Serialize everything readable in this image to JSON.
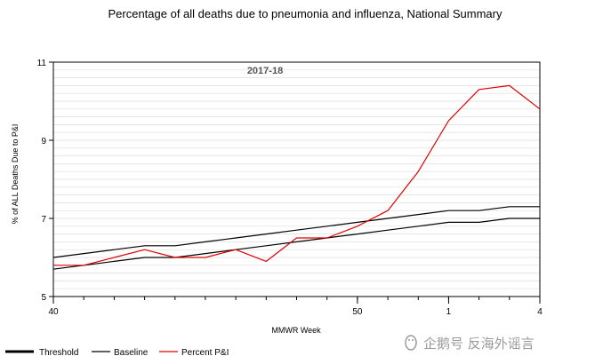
{
  "chart_data": {
    "type": "line",
    "title": "Percentage of all deaths due to pneumonia and influenza, National Summary",
    "season_label": "2017-18",
    "xlabel": "MMWR Week",
    "ylabel": "% of ALL Deaths Due to P&I",
    "ylim": [
      5,
      11
    ],
    "yticks": [
      5,
      7,
      9,
      11
    ],
    "xticks": [
      {
        "index": 0,
        "label": "40"
      },
      {
        "index": 10,
        "label": "50"
      },
      {
        "index": 13,
        "label": "1"
      },
      {
        "index": 16,
        "label": "4"
      }
    ],
    "weeks": [
      "40",
      "41",
      "42",
      "43",
      "44",
      "45",
      "46",
      "47",
      "48",
      "49",
      "50",
      "51",
      "52",
      "1",
      "2",
      "3",
      "4"
    ],
    "series": [
      {
        "name": "Threshold",
        "color": "#000000",
        "values": [
          6.0,
          6.1,
          6.2,
          6.3,
          6.3,
          6.4,
          6.5,
          6.6,
          6.7,
          6.8,
          6.9,
          7.0,
          7.1,
          7.2,
          7.2,
          7.3,
          7.3
        ]
      },
      {
        "name": "Baseline",
        "color": "#000000",
        "values": [
          5.7,
          5.8,
          5.9,
          6.0,
          6.0,
          6.1,
          6.2,
          6.3,
          6.4,
          6.5,
          6.6,
          6.7,
          6.8,
          6.9,
          6.9,
          7.0,
          7.0
        ]
      },
      {
        "name": "Percent P&I",
        "color": "#e00000",
        "values": [
          5.8,
          5.8,
          6.0,
          6.2,
          6.0,
          6.0,
          6.2,
          5.9,
          6.5,
          6.5,
          6.8,
          7.2,
          8.2,
          9.5,
          10.3,
          10.4,
          9.8
        ]
      }
    ],
    "grid": true,
    "legend_position": "bottom-left"
  },
  "watermark": "企鹅号 反海外谣言",
  "colors": {
    "threshold": "#000000",
    "baseline": "#000000",
    "percent_pi": "#e00000",
    "grid": "#dddddd"
  }
}
